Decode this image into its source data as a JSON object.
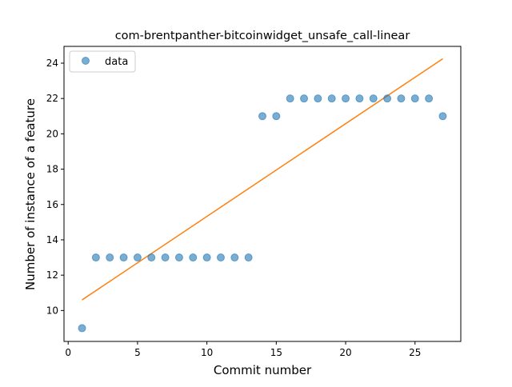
{
  "chart_data": {
    "type": "scatter",
    "title": "com-brentpanther-bitcoinwidget_unsafe_call-linear",
    "xlabel": "Commit number",
    "ylabel": "Number of instance of a feature",
    "xlim": [
      -0.3,
      28.3
    ],
    "ylim": [
      8.25,
      24.95
    ],
    "xticks": [
      0,
      5,
      10,
      15,
      20,
      25
    ],
    "yticks": [
      10,
      12,
      14,
      16,
      18,
      20,
      22,
      24
    ],
    "grid": false,
    "legend_position": "upper-left",
    "series": [
      {
        "name": "data",
        "kind": "points",
        "color": "#1f77b4",
        "x": [
          1,
          2,
          3,
          4,
          5,
          6,
          7,
          8,
          9,
          10,
          11,
          12,
          13,
          14,
          15,
          16,
          17,
          18,
          19,
          20,
          21,
          22,
          23,
          24,
          25,
          26,
          27
        ],
        "y": [
          9,
          13,
          13,
          13,
          13,
          13,
          13,
          13,
          13,
          13,
          13,
          13,
          13,
          21,
          21,
          22,
          22,
          22,
          22,
          22,
          22,
          22,
          22,
          22,
          22,
          22,
          21
        ]
      },
      {
        "kind": "fit-line",
        "color": "#ff7f0e",
        "x": [
          1,
          27
        ],
        "y": [
          10.6,
          24.25
        ]
      }
    ]
  }
}
